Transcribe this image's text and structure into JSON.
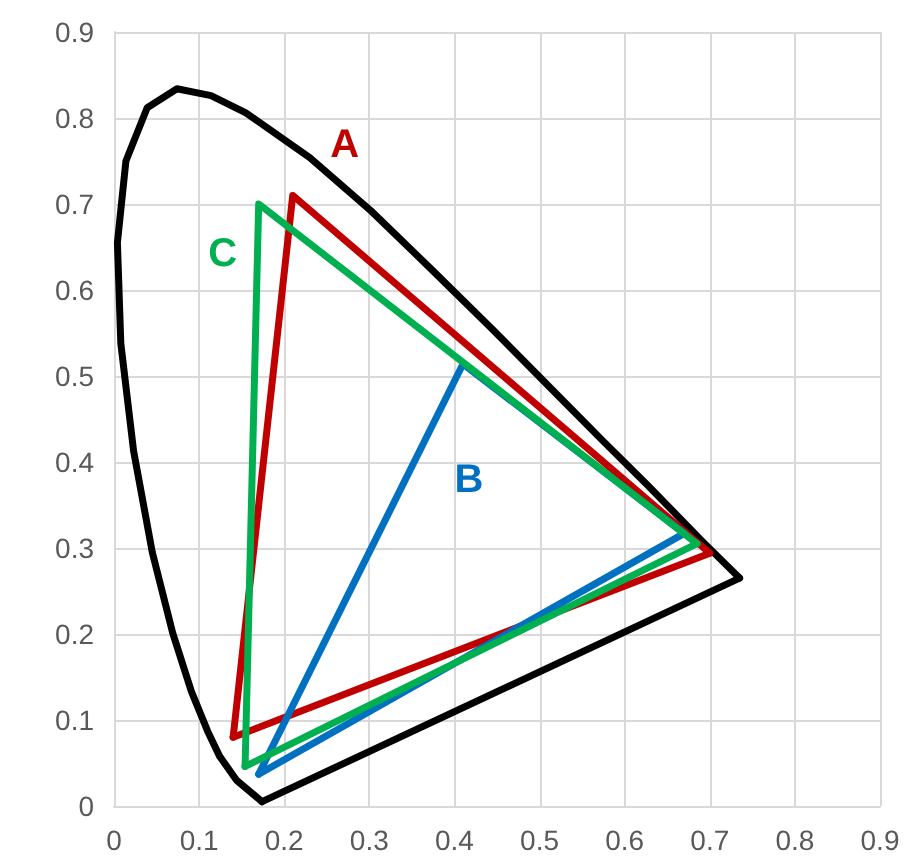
{
  "chart_data": {
    "type": "line",
    "marker": "none",
    "line_style": "solid",
    "grid": true,
    "legend": false,
    "xlim": [
      0,
      0.9
    ],
    "xticks": [
      0,
      0.1,
      0.2,
      0.3,
      0.4,
      0.5,
      0.6,
      0.7,
      0.8,
      0.9
    ],
    "ylim": [
      0,
      0.9
    ],
    "yticks": [
      0,
      0.1,
      0.2,
      0.3,
      0.4,
      0.5,
      0.6,
      0.7,
      0.8,
      0.9
    ],
    "series": [
      {
        "color": "#000000",
        "x": [
          0.174,
          0.144,
          0.124,
          0.11,
          0.091,
          0.069,
          0.045,
          0.023,
          0.008,
          0.004,
          0.014,
          0.039,
          0.074,
          0.114,
          0.155,
          0.23,
          0.302,
          0.373,
          0.444,
          0.512,
          0.575,
          0.627,
          0.691,
          0.735
        ],
        "values": [
          0.005,
          0.03,
          0.058,
          0.087,
          0.133,
          0.201,
          0.295,
          0.413,
          0.538,
          0.655,
          0.75,
          0.812,
          0.834,
          0.826,
          0.806,
          0.754,
          0.692,
          0.624,
          0.555,
          0.487,
          0.424,
          0.373,
          0.308,
          0.265
        ]
      },
      {
        "color": "#000000",
        "x": [
          0.735,
          0.174
        ],
        "values": [
          0.265,
          0.005
        ]
      },
      {
        "name": "A",
        "color": "#c00000",
        "x": [
          0.14,
          0.21,
          0.7
        ],
        "values": [
          0.08,
          0.71,
          0.294
        ]
      },
      {
        "color": "#c00000",
        "x": [
          0.7,
          0.14
        ],
        "values": [
          0.294,
          0.08
        ]
      },
      {
        "name": "B",
        "color": "#0070c0",
        "x": [
          0.17,
          0.41,
          0.67
        ],
        "values": [
          0.037,
          0.514,
          0.317
        ]
      },
      {
        "color": "#0070c0",
        "x": [
          0.67,
          0.17
        ],
        "values": [
          0.317,
          0.037
        ]
      },
      {
        "name": "C",
        "color": "#00b050",
        "x": [
          0.154,
          0.17,
          0.685
        ],
        "values": [
          0.046,
          0.7,
          0.305
        ]
      },
      {
        "color": "#00b050",
        "x": [
          0.685,
          0.154
        ],
        "values": [
          0.305,
          0.046
        ]
      }
    ]
  }
}
